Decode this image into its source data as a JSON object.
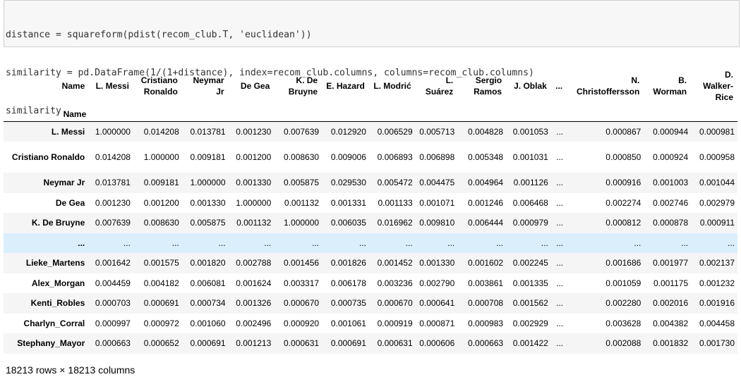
{
  "code_cell": {
    "lines": [
      "distance = squareform(pdist(recom_club.T, 'euclidean'))",
      "similarity = pd.DataFrame(1/(1+distance), index=recom_club.columns, columns=recom_club.columns)",
      "similarity"
    ]
  },
  "dataframe": {
    "columns_header_label": "Name",
    "index_header_label": "Name",
    "columns": [
      "L. Messi",
      "Cristiano Ronaldo",
      "Neymar Jr",
      "De Gea",
      "K. De Bruyne",
      "E. Hazard",
      "L. Modrić",
      "L. Suárez",
      "Sergio Ramos",
      "J. Oblak",
      "...",
      "N. Christoffersson",
      "B. Worman",
      "D. Walker-Rice"
    ],
    "rows": [
      {
        "index": "L. Messi",
        "values": [
          "1.000000",
          "0.014208",
          "0.013781",
          "0.001230",
          "0.007639",
          "0.012920",
          "0.006529",
          "0.005713",
          "0.004828",
          "0.001053",
          "...",
          "0.000867",
          "0.000944",
          "0.000981"
        ]
      },
      {
        "index": "Cristiano Ronaldo",
        "values": [
          "0.014208",
          "1.000000",
          "0.009181",
          "0.001200",
          "0.008630",
          "0.009006",
          "0.006893",
          "0.006898",
          "0.005348",
          "0.001031",
          "...",
          "0.000850",
          "0.000924",
          "0.000958"
        ]
      },
      {
        "index": "Neymar Jr",
        "values": [
          "0.013781",
          "0.009181",
          "1.000000",
          "0.001330",
          "0.005875",
          "0.029530",
          "0.005472",
          "0.004475",
          "0.004964",
          "0.001126",
          "...",
          "0.000916",
          "0.001003",
          "0.001044"
        ]
      },
      {
        "index": "De Gea",
        "values": [
          "0.001230",
          "0.001200",
          "0.001330",
          "1.000000",
          "0.001132",
          "0.001331",
          "0.001133",
          "0.001071",
          "0.001246",
          "0.006468",
          "...",
          "0.002274",
          "0.002746",
          "0.002979"
        ]
      },
      {
        "index": "K. De Bruyne",
        "values": [
          "0.007639",
          "0.008630",
          "0.005875",
          "0.001132",
          "1.000000",
          "0.006035",
          "0.016962",
          "0.009810",
          "0.006444",
          "0.000979",
          "...",
          "0.000812",
          "0.000878",
          "0.000911"
        ]
      },
      {
        "index": "...",
        "values": [
          "...",
          "...",
          "...",
          "...",
          "...",
          "...",
          "...",
          "...",
          "...",
          "...",
          "...",
          "...",
          "...",
          "..."
        ]
      },
      {
        "index": "Lieke_Martens",
        "values": [
          "0.001642",
          "0.001575",
          "0.001820",
          "0.002788",
          "0.001456",
          "0.001826",
          "0.001452",
          "0.001330",
          "0.001602",
          "0.002245",
          "...",
          "0.001686",
          "0.001977",
          "0.002137"
        ]
      },
      {
        "index": "Alex_Morgan",
        "values": [
          "0.004459",
          "0.004182",
          "0.006081",
          "0.001624",
          "0.003317",
          "0.006178",
          "0.003236",
          "0.002790",
          "0.003861",
          "0.001335",
          "...",
          "0.001059",
          "0.001175",
          "0.001232"
        ]
      },
      {
        "index": "Kenti_Robles",
        "values": [
          "0.000703",
          "0.000691",
          "0.000734",
          "0.001326",
          "0.000670",
          "0.000735",
          "0.000670",
          "0.000641",
          "0.000708",
          "0.001562",
          "...",
          "0.002280",
          "0.002016",
          "0.001916"
        ]
      },
      {
        "index": "Charlyn_Corral",
        "values": [
          "0.000997",
          "0.000972",
          "0.001060",
          "0.002496",
          "0.000920",
          "0.001061",
          "0.000919",
          "0.000871",
          "0.000983",
          "0.002929",
          "...",
          "0.003628",
          "0.004382",
          "0.004458"
        ]
      },
      {
        "index": "Stephany_Mayor",
        "values": [
          "0.000663",
          "0.000652",
          "0.000691",
          "0.001213",
          "0.000631",
          "0.000691",
          "0.000631",
          "0.000606",
          "0.000663",
          "0.001422",
          "...",
          "0.002088",
          "0.001832",
          "0.001730"
        ]
      }
    ],
    "shape_text": "18213 rows × 18213 columns",
    "highlight_color": "#dbeefc",
    "stripe_color": "#f5f5f5"
  }
}
